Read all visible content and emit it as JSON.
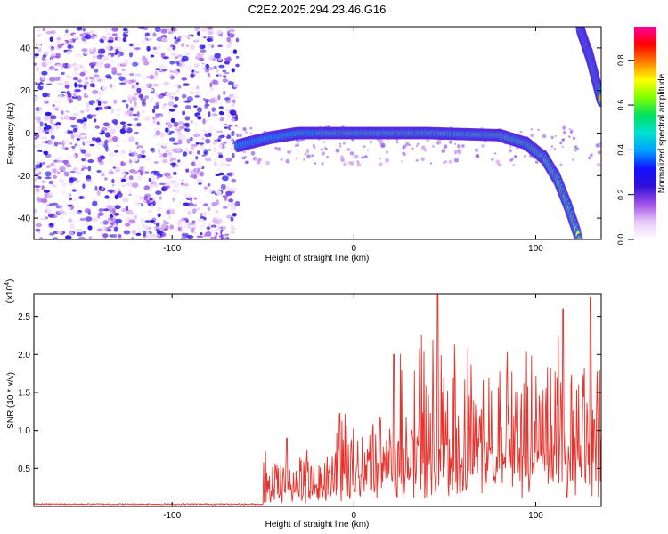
{
  "page": {
    "title": "C2E2.2025.294.23.46.G16"
  },
  "colors": {
    "snr_line": "#e8322c",
    "axis": "#000000",
    "colormap": [
      "#ffffff",
      "#e8c8f8",
      "#a050e8",
      "#3010d8",
      "#1010ff",
      "#00a0ff",
      "#00e0d0",
      "#00e060",
      "#80ff00",
      "#ffff00",
      "#ff8000",
      "#ff0000",
      "#ff00a0"
    ]
  },
  "chart_data": [
    {
      "type": "heatmap",
      "title": "C2E2.2025.294.23.46.G16",
      "xlabel": "Height of straight line (km)",
      "ylabel": "Frequency (Hz)",
      "xlim": [
        -176,
        136
      ],
      "ylim": [
        -50,
        50
      ],
      "x_ticks": [
        -100,
        0,
        100
      ],
      "y_ticks": [
        -40,
        -20,
        0,
        20,
        40
      ],
      "colorbar": {
        "label": "Normalized spectral amplitude",
        "range": [
          0.0,
          0.95
        ],
        "ticks": [
          0.0,
          0.2,
          0.4,
          0.6,
          0.8
        ]
      },
      "features": {
        "noise_region_x": [
          -176,
          -64
        ],
        "ridge": [
          {
            "x": -64,
            "y": -6
          },
          {
            "x": -55,
            "y": -4
          },
          {
            "x": -45,
            "y": -2
          },
          {
            "x": -30,
            "y": 0
          },
          {
            "x": -20,
            "y": 0
          },
          {
            "x": 0,
            "y": 0
          },
          {
            "x": 40,
            "y": 0
          },
          {
            "x": 80,
            "y": -1
          },
          {
            "x": 95,
            "y": -5
          },
          {
            "x": 105,
            "y": -12
          },
          {
            "x": 112,
            "y": -22
          },
          {
            "x": 118,
            "y": -35
          },
          {
            "x": 124,
            "y": -50
          }
        ],
        "upper_branch": [
          {
            "x": 124,
            "y": 50
          },
          {
            "x": 130,
            "y": 35
          },
          {
            "x": 136,
            "y": 15
          }
        ]
      }
    },
    {
      "type": "line",
      "xlabel": "Height of straight line (km)",
      "ylabel": "SNR (10 * v/v)",
      "y_multiplier": "(x10",
      "y_multiplier_exp": "4",
      "xlim": [
        -176,
        136
      ],
      "ylim": [
        0,
        2.8
      ],
      "x_ticks": [
        -100,
        0,
        100
      ],
      "y_ticks": [
        0.5,
        1.0,
        1.5,
        2.0,
        2.5
      ],
      "series": [
        {
          "description_regions": [
            {
              "x": [
                -176,
                -50
              ],
              "mean": 0.03,
              "spread": 0.03
            },
            {
              "x": [
                -50,
                -10
              ],
              "mean": 0.35,
              "spread": 0.55
            },
            {
              "x": [
                -10,
                25
              ],
              "mean": 0.65,
              "spread": 0.95
            },
            {
              "x": [
                25,
                136
              ],
              "mean": 0.95,
              "spread": 1.55
            }
          ],
          "peaks": [
            {
              "x": 46,
              "y": 2.8
            },
            {
              "x": 115,
              "y": 2.6
            },
            {
              "x": 130,
              "y": 2.75
            },
            {
              "x": -37,
              "y": 0.9
            },
            {
              "x": -8,
              "y": 1.2
            },
            {
              "x": 22,
              "y": 2.0
            }
          ]
        }
      ]
    }
  ]
}
